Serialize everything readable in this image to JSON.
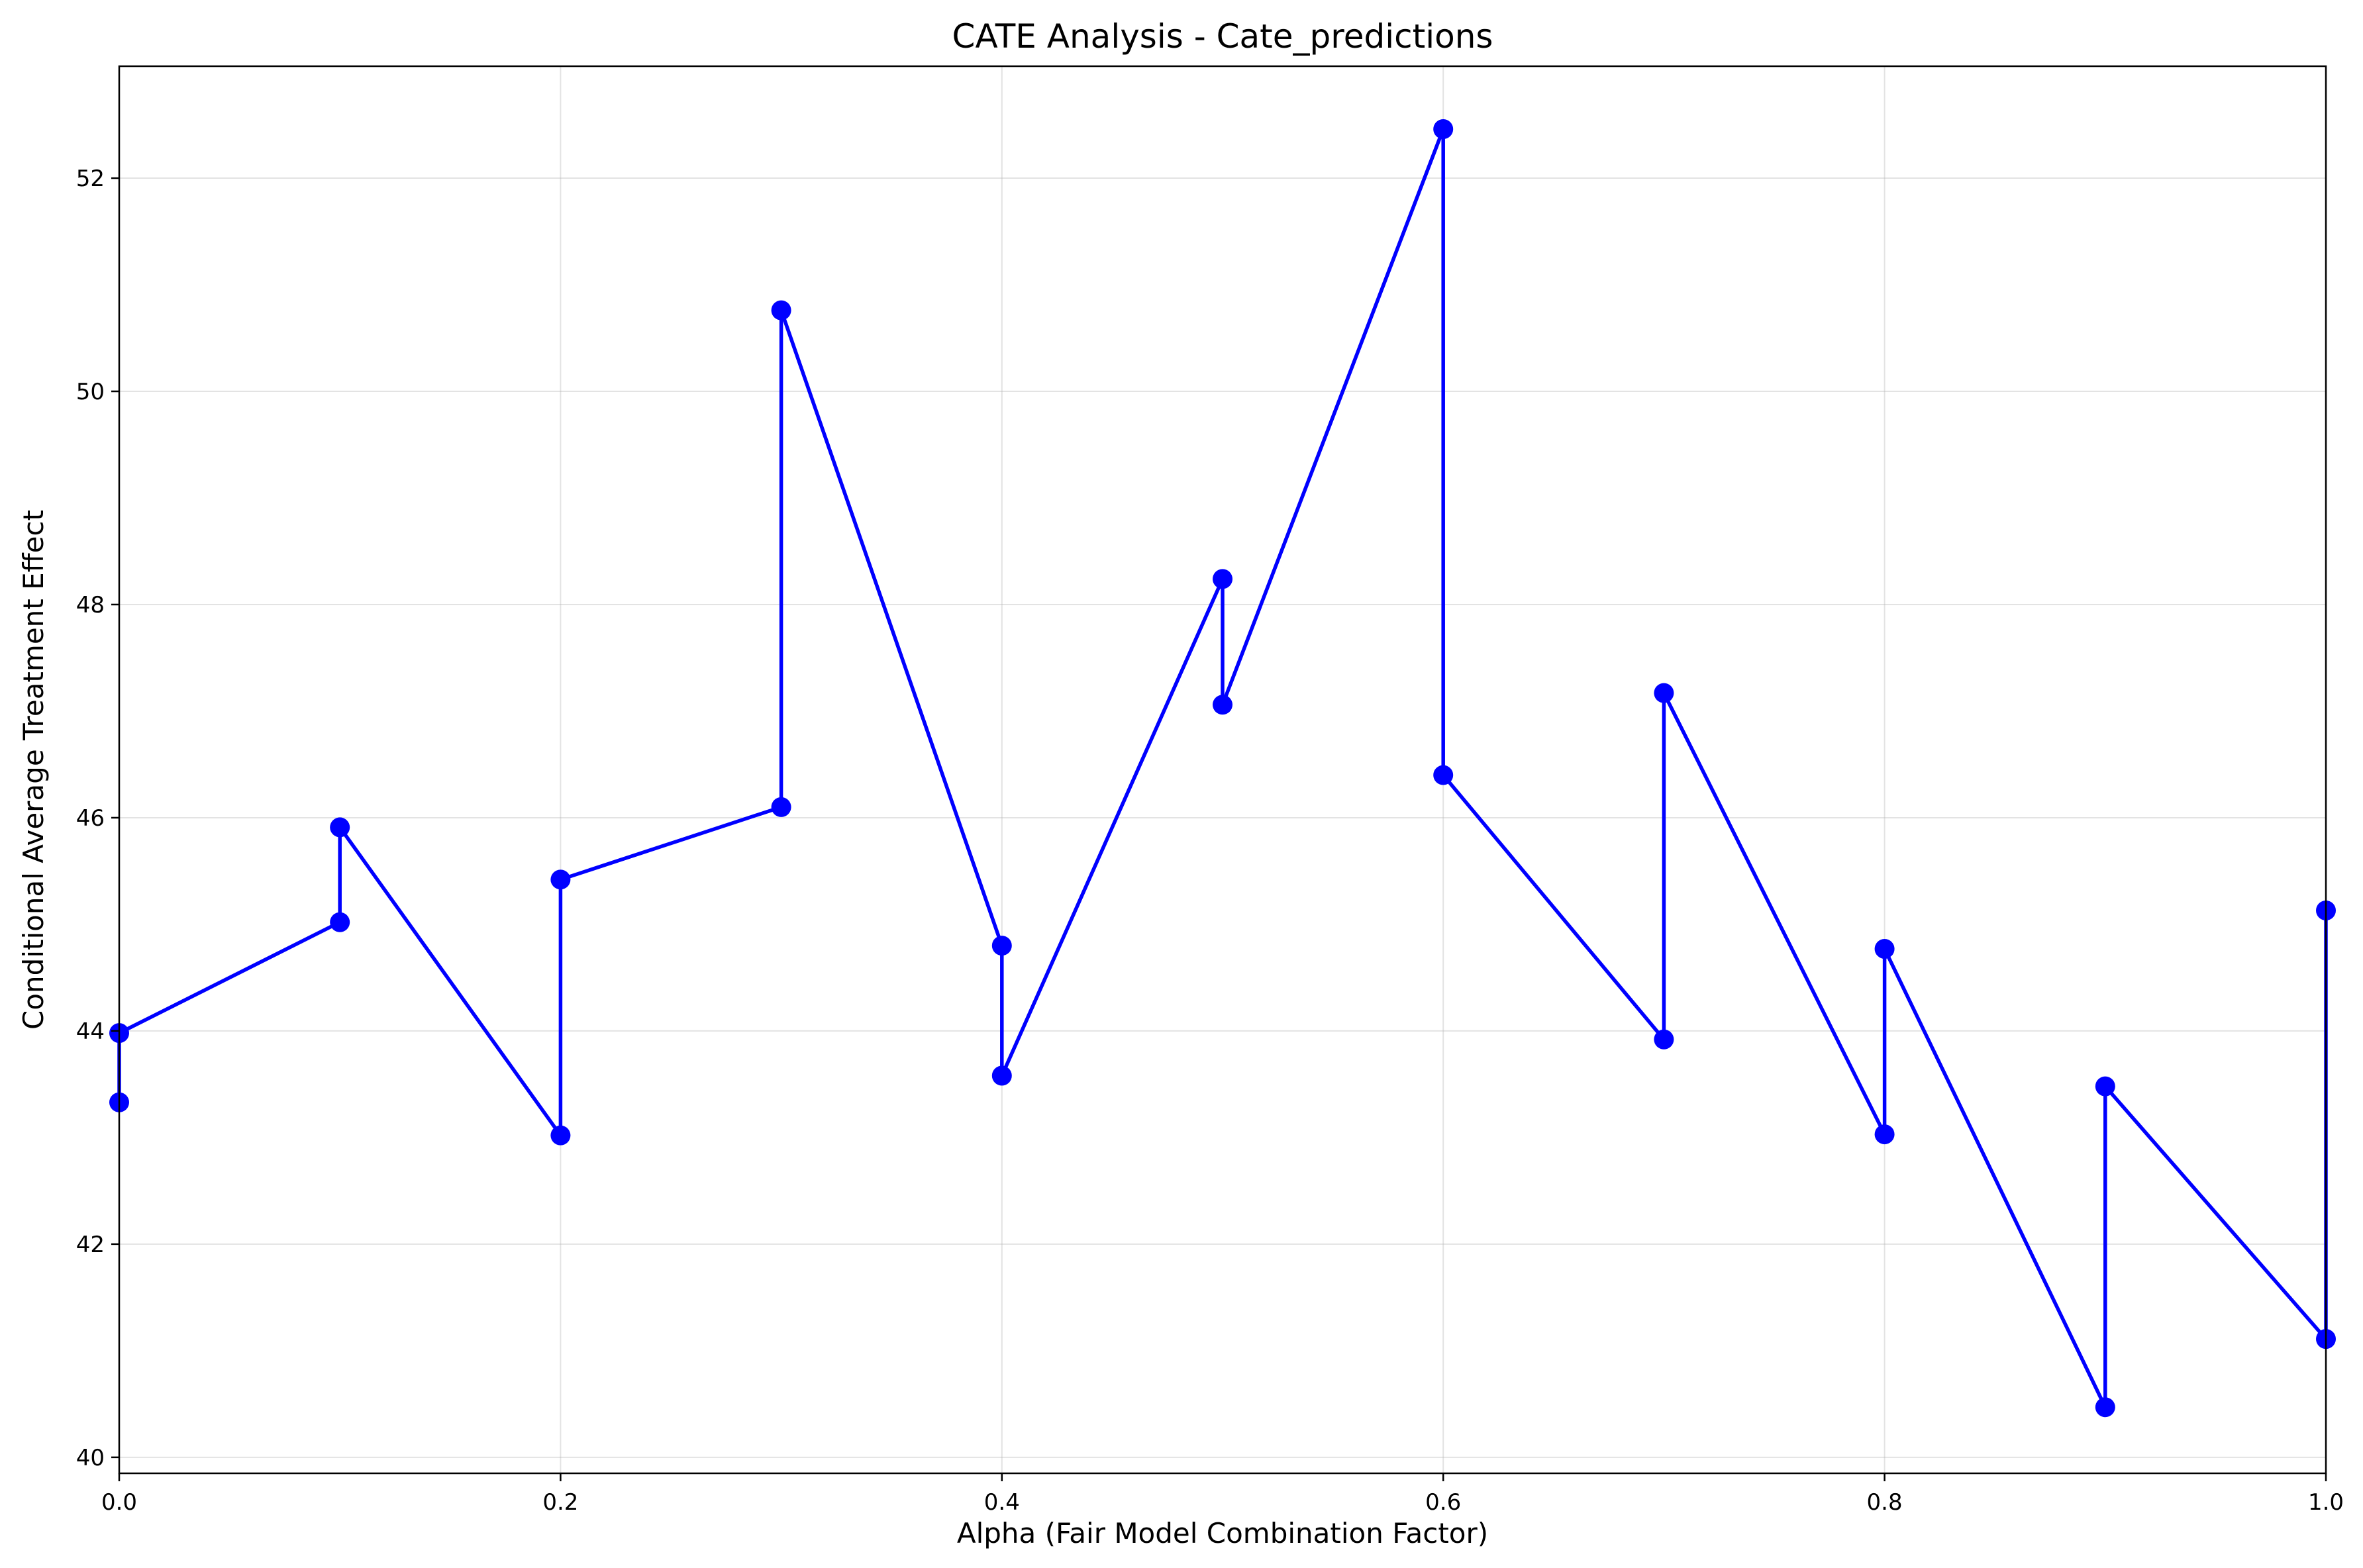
{
  "chart_data": {
    "type": "line",
    "title": "CATE Analysis - Cate_predictions",
    "xlabel": "Alpha (Fair Model Combination Factor)",
    "ylabel": "Conditional Average Treatment Effect",
    "xlim": [
      0,
      1
    ],
    "ylim": [
      39.85,
      53.05
    ],
    "xticks": [
      0,
      0.2,
      0.4,
      0.6,
      0.8,
      1
    ],
    "xtick_labels": [
      "0.0",
      "0.2",
      "0.4",
      "0.6",
      "0.8",
      "1.0"
    ],
    "yticks": [
      40,
      42,
      44,
      46,
      48,
      50,
      52
    ],
    "ytick_labels": [
      "40",
      "42",
      "44",
      "46",
      "48",
      "50",
      "52"
    ],
    "grid": true,
    "series": [
      {
        "color": "#0000ff",
        "marker": "circle",
        "points": [
          {
            "x": 0.0,
            "y": 43.33
          },
          {
            "x": 0.0,
            "y": 43.98
          },
          {
            "x": 0.1,
            "y": 45.02
          },
          {
            "x": 0.1,
            "y": 45.91
          },
          {
            "x": 0.2,
            "y": 43.02
          },
          {
            "x": 0.2,
            "y": 45.42
          },
          {
            "x": 0.3,
            "y": 46.1
          },
          {
            "x": 0.3,
            "y": 50.76
          },
          {
            "x": 0.4,
            "y": 44.8
          },
          {
            "x": 0.4,
            "y": 43.58
          },
          {
            "x": 0.5,
            "y": 48.24
          },
          {
            "x": 0.5,
            "y": 47.06
          },
          {
            "x": 0.6,
            "y": 52.46
          },
          {
            "x": 0.6,
            "y": 46.4
          },
          {
            "x": 0.7,
            "y": 43.92
          },
          {
            "x": 0.7,
            "y": 47.17
          },
          {
            "x": 0.8,
            "y": 43.03
          },
          {
            "x": 0.8,
            "y": 44.77
          },
          {
            "x": 0.9,
            "y": 40.47
          },
          {
            "x": 0.9,
            "y": 43.48
          },
          {
            "x": 1.0,
            "y": 41.11
          },
          {
            "x": 1.0,
            "y": 45.13
          }
        ]
      }
    ]
  }
}
